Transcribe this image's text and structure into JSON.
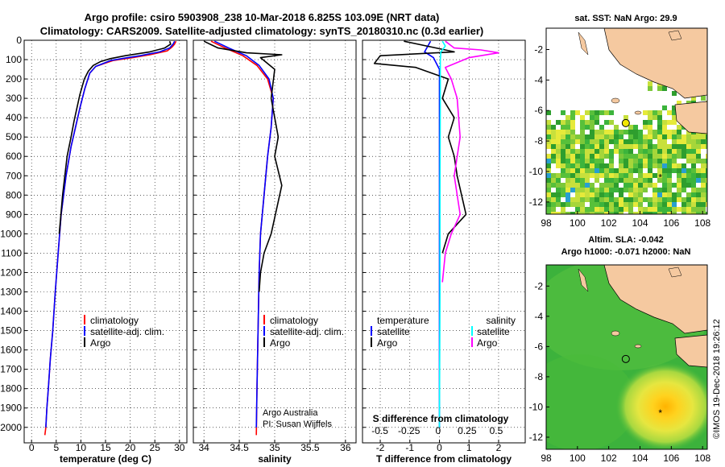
{
  "title_line1": "Argo profile: csiro 5903908_238 10-Mar-2018 6.825S 103.09E (NRT data)",
  "title_line2": "Climatology: CARS2009. Satellite-adjusted climatology: synTS_20180310.nc (0.3d earlier)",
  "credit_line1": "Argo Australia",
  "credit_line2": "PI: Susan Wijffels",
  "copyright": "©IMOS 19-Dec-2018 19:26:12",
  "colors": {
    "climatology": "#ff0000",
    "satellite": "#0000ff",
    "argo": "#000000",
    "satellite_salinity": "#00ffff",
    "argo_salinity": "#ff00ff",
    "land": "#f5c9a0",
    "ocean_sla": "#3cb23c"
  },
  "chart_data": [
    {
      "type": "line",
      "name": "temperature-profile",
      "xlabel": "temperature (deg C)",
      "ylabel": "",
      "xlim": [
        -1.5,
        31.5
      ],
      "ylim": [
        2080,
        0
      ],
      "xticks": [
        0,
        5,
        10,
        15,
        20,
        25,
        30
      ],
      "xtick_labels": [
        "0",
        "5",
        "10",
        "15",
        "20",
        "25",
        "30"
      ],
      "yticks": [
        0,
        100,
        200,
        300,
        400,
        500,
        600,
        700,
        800,
        900,
        1000,
        1100,
        1200,
        1300,
        1400,
        1500,
        1600,
        1700,
        1800,
        1900,
        2000
      ],
      "ytick_labels": [
        "0",
        "100",
        "200",
        "300",
        "400",
        "500",
        "600",
        "700",
        "800",
        "900",
        "1000",
        "1100",
        "1200",
        "1300",
        "1400",
        "1500",
        "1600",
        "1700",
        "1800",
        "1900",
        "2000"
      ],
      "legend": [
        "climatology",
        "satellite-adj. clim.",
        "Argo"
      ],
      "series": [
        {
          "name": "climatology",
          "color": "#ff0000",
          "x": [
            29.3,
            29.0,
            28.5,
            27.5,
            24.0,
            20.5,
            16.5,
            13.0,
            11.8,
            10.8,
            9.8,
            8.9,
            8.0,
            7.0,
            6.0,
            5.4,
            4.8,
            4.3,
            3.8,
            3.4,
            3.1,
            2.9,
            2.7
          ],
          "y": [
            5,
            20,
            35,
            55,
            75,
            90,
            105,
            135,
            170,
            250,
            350,
            450,
            550,
            700,
            900,
            1100,
            1300,
            1500,
            1650,
            1800,
            1900,
            2000,
            2040
          ]
        },
        {
          "name": "satellite-adj. clim.",
          "color": "#0000ff",
          "x": [
            29.0,
            28.7,
            28.0,
            26.0,
            22.0,
            19.0,
            16.0,
            13.0,
            11.8,
            10.8,
            9.8,
            8.9,
            8.0,
            7.0,
            6.0,
            5.4,
            4.8,
            4.3,
            3.8,
            3.4,
            3.1,
            2.9
          ],
          "y": [
            5,
            20,
            40,
            60,
            80,
            92,
            105,
            135,
            170,
            250,
            350,
            450,
            550,
            700,
            900,
            1100,
            1300,
            1500,
            1650,
            1800,
            1900,
            2000
          ]
        },
        {
          "name": "Argo",
          "color": "#000000",
          "x": [
            28.0,
            28.2,
            27.0,
            24.0,
            19.0,
            16.0,
            14.0,
            12.5,
            11.5,
            10.7,
            9.8,
            9.2,
            8.6,
            8.0,
            7.2,
            6.3,
            5.6
          ],
          "y": [
            5,
            20,
            40,
            60,
            80,
            95,
            110,
            130,
            160,
            200,
            280,
            350,
            420,
            500,
            600,
            800,
            1000
          ]
        }
      ]
    },
    {
      "type": "line",
      "name": "salinity-profile",
      "xlabel": "salinity",
      "ylabel": "",
      "xlim": [
        33.85,
        36.15
      ],
      "ylim": [
        2080,
        0
      ],
      "xticks": [
        34,
        34.5,
        35,
        35.5,
        36
      ],
      "xtick_labels": [
        "34",
        "34.5",
        "35",
        "35.5",
        "36"
      ],
      "legend": [
        "climatology",
        "satellite-adj. clim.",
        "Argo"
      ],
      "series": [
        {
          "name": "climatology",
          "color": "#ff0000",
          "x": [
            34.1,
            34.3,
            34.55,
            34.75,
            34.9,
            34.98,
            34.95,
            34.9,
            34.85,
            34.8,
            34.78,
            34.77,
            34.76,
            34.75,
            34.74
          ],
          "y": [
            5,
            40,
            80,
            130,
            200,
            300,
            450,
            600,
            800,
            1000,
            1200,
            1400,
            1600,
            1800,
            2040
          ]
        },
        {
          "name": "satellite-adj. clim.",
          "color": "#0000ff",
          "x": [
            34.15,
            34.35,
            34.6,
            34.78,
            34.92,
            34.98,
            34.95,
            34.9,
            34.85,
            34.8,
            34.78,
            34.77,
            34.76,
            34.75,
            34.74
          ],
          "y": [
            5,
            40,
            80,
            130,
            200,
            300,
            450,
            600,
            800,
            1000,
            1200,
            1400,
            1600,
            1800,
            2000
          ]
        },
        {
          "name": "Argo",
          "color": "#000000",
          "x": [
            34.0,
            34.2,
            34.6,
            35.1,
            34.8,
            35.0,
            34.95,
            35.05,
            35.0,
            35.1,
            34.95,
            34.85,
            34.8,
            34.78
          ],
          "y": [
            5,
            40,
            65,
            75,
            90,
            150,
            300,
            500,
            600,
            750,
            1000,
            1100,
            1200,
            1300
          ]
        }
      ]
    },
    {
      "type": "line",
      "name": "difference-profile",
      "xlabel": "T difference from climatology",
      "xlabel_top": "S difference from climatology",
      "xlim": [
        -2.6,
        2.9
      ],
      "ylim": [
        2080,
        0
      ],
      "xticks": [
        -2,
        -1,
        0,
        1,
        2
      ],
      "xtick_labels": [
        "-2",
        "-1",
        "0",
        "1",
        "2"
      ],
      "xticks_top": [
        -0.5,
        -0.25,
        0,
        0.25,
        0.5
      ],
      "xtick_labels_top": [
        "-0.5",
        "-0.25",
        "0",
        "0.25",
        "0.5"
      ],
      "legend_left_title": "temperature",
      "legend_left": [
        "satellite",
        "Argo"
      ],
      "legend_right_title": "salinity",
      "legend_right": [
        "satellite",
        "Argo"
      ],
      "series": [
        {
          "name": "T satellite",
          "color": "#0000ff",
          "x": [
            -0.3,
            -0.5,
            -0.2,
            0.0,
            0.0,
            0.0,
            0.0
          ],
          "y": [
            5,
            60,
            90,
            150,
            400,
            1000,
            2000
          ]
        },
        {
          "name": "T Argo",
          "color": "#000000",
          "x": [
            -1.2,
            0.5,
            -2.0,
            -2.2,
            -0.8,
            0.3,
            0.1,
            0.5,
            0.3,
            0.5,
            0.6,
            0.9,
            0.3,
            0.1
          ],
          "y": [
            5,
            60,
            80,
            120,
            140,
            200,
            300,
            400,
            500,
            600,
            700,
            900,
            1000,
            1100
          ]
        },
        {
          "name": "S satellite",
          "color": "#00ffff",
          "x": [
            0.1,
            0.2,
            0.05,
            0.03,
            0.03,
            0.02,
            0.02,
            0.0
          ],
          "y": [
            5,
            30,
            60,
            100,
            300,
            800,
            1300,
            2000
          ]
        },
        {
          "name": "S Argo",
          "color": "#ff00ff",
          "x": [
            0.2,
            0.5,
            1.4,
            2.0,
            1.0,
            0.2,
            0.4,
            0.6,
            0.7,
            0.5,
            0.7,
            0.4,
            0.2,
            0.1
          ],
          "y": [
            5,
            40,
            50,
            65,
            90,
            140,
            200,
            300,
            500,
            700,
            900,
            1000,
            1100,
            1250
          ]
        }
      ]
    },
    {
      "type": "heatmap",
      "name": "sst-map",
      "title": "sat. SST: NaN Argo: 29.9",
      "xlim": [
        98,
        108.3
      ],
      "ylim": [
        -12.8,
        -0.6
      ],
      "xticks": [
        98,
        100,
        102,
        104,
        106,
        108
      ],
      "xtick_labels": [
        "98",
        "100",
        "102",
        "104",
        "106",
        "108"
      ],
      "yticks": [
        -2,
        -4,
        -6,
        -8,
        -10,
        -12
      ],
      "ytick_labels": [
        "-2",
        "-4",
        "-6",
        "-8",
        "-10",
        "-12"
      ],
      "float_position": [
        103.09,
        -6.825
      ],
      "float_value": 29.9
    },
    {
      "type": "heatmap",
      "name": "sla-map",
      "title_line1": "Altim. SLA: -0.042",
      "title_line2": "Argo h1000: -0.071 h2000: NaN",
      "xlim": [
        98,
        108.3
      ],
      "ylim": [
        -12.8,
        -0.6
      ],
      "xticks": [
        98,
        100,
        102,
        104,
        106,
        108
      ],
      "xtick_labels": [
        "98",
        "100",
        "102",
        "104",
        "106",
        "108"
      ],
      "yticks": [
        -2,
        -4,
        -6,
        -8,
        -10,
        -12
      ],
      "ytick_labels": [
        "-2",
        "-4",
        "-6",
        "-8",
        "-10",
        "-12"
      ],
      "float_position": [
        103.09,
        -6.825
      ],
      "sla_value": -0.042
    }
  ]
}
